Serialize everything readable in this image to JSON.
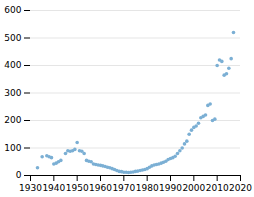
{
  "chart_data": {
    "type": "scatter",
    "x": [
      1933,
      1935,
      1937,
      1938,
      1939,
      1940,
      1941,
      1942,
      1943,
      1945,
      1946,
      1947,
      1948,
      1949,
      1950,
      1951,
      1952,
      1953,
      1954,
      1955,
      1956,
      1957,
      1958,
      1959,
      1960,
      1961,
      1962,
      1963,
      1964,
      1965,
      1966,
      1967,
      1968,
      1969,
      1970,
      1971,
      1972,
      1973,
      1974,
      1975,
      1976,
      1977,
      1978,
      1979,
      1980,
      1981,
      1982,
      1983,
      1984,
      1985,
      1986,
      1987,
      1988,
      1989,
      1990,
      1991,
      1992,
      1993,
      1994,
      1995,
      1996,
      1997,
      1998,
      1999,
      2000,
      2001,
      2002,
      2003,
      2004,
      2005,
      2006,
      2007,
      2008,
      2009,
      2010,
      2011,
      2012,
      2013,
      2014,
      2015,
      2016,
      2017
    ],
    "values": [
      28,
      68,
      72,
      68,
      65,
      42,
      45,
      50,
      55,
      80,
      90,
      88,
      90,
      95,
      120,
      90,
      88,
      80,
      55,
      52,
      50,
      42,
      40,
      38,
      37,
      35,
      33,
      30,
      28,
      25,
      22,
      18,
      15,
      14,
      12,
      12,
      11,
      12,
      13,
      15,
      16,
      18,
      20,
      22,
      25,
      30,
      35,
      38,
      40,
      42,
      45,
      48,
      52,
      58,
      62,
      65,
      70,
      80,
      90,
      100,
      115,
      125,
      150,
      165,
      175,
      180,
      190,
      210,
      215,
      220,
      255,
      260,
      200,
      205,
      400,
      420,
      415,
      365,
      370,
      390,
      425,
      520
    ],
    "color": "#7bafd4",
    "marker": "circle",
    "xlim": [
      1930,
      2020
    ],
    "ylim": [
      0,
      600
    ],
    "xticks": [
      1930,
      1940,
      1950,
      1960,
      1970,
      1980,
      1990,
      2000,
      2010,
      2020
    ],
    "yticks": [
      0,
      100,
      200,
      300,
      400,
      500,
      600
    ],
    "grid": true
  }
}
